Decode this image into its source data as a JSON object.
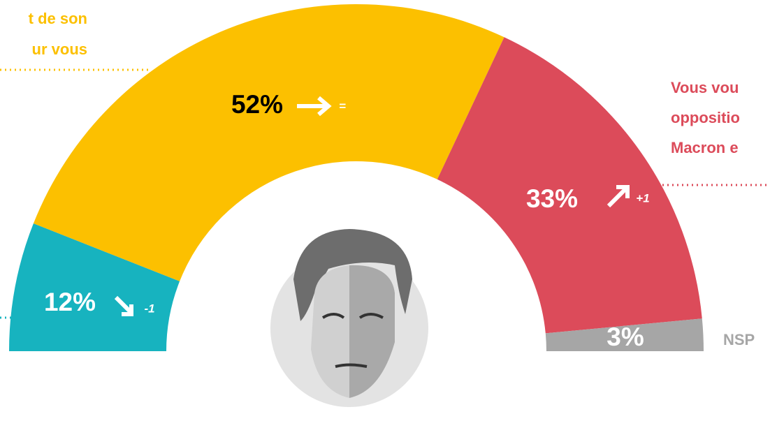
{
  "chart_data": {
    "type": "pie",
    "categories": [
      null,
      [
        "t de son",
        "ur vous"
      ],
      [
        "Vous vou",
        "oppositio",
        "Macron e"
      ],
      "NSP"
    ],
    "values": [
      12,
      52,
      33,
      3
    ],
    "value_labels": [
      "12%",
      "52%",
      "33%",
      "3%"
    ],
    "changes": [
      "-1",
      "=",
      "+1",
      null
    ],
    "colors": [
      "#17b3bf",
      "#fcc000",
      "#dc4b5a",
      "#a6a6a6"
    ],
    "label_colors": [
      "#ffffff",
      "#000000",
      "#ffffff",
      "#ffffff"
    ]
  }
}
